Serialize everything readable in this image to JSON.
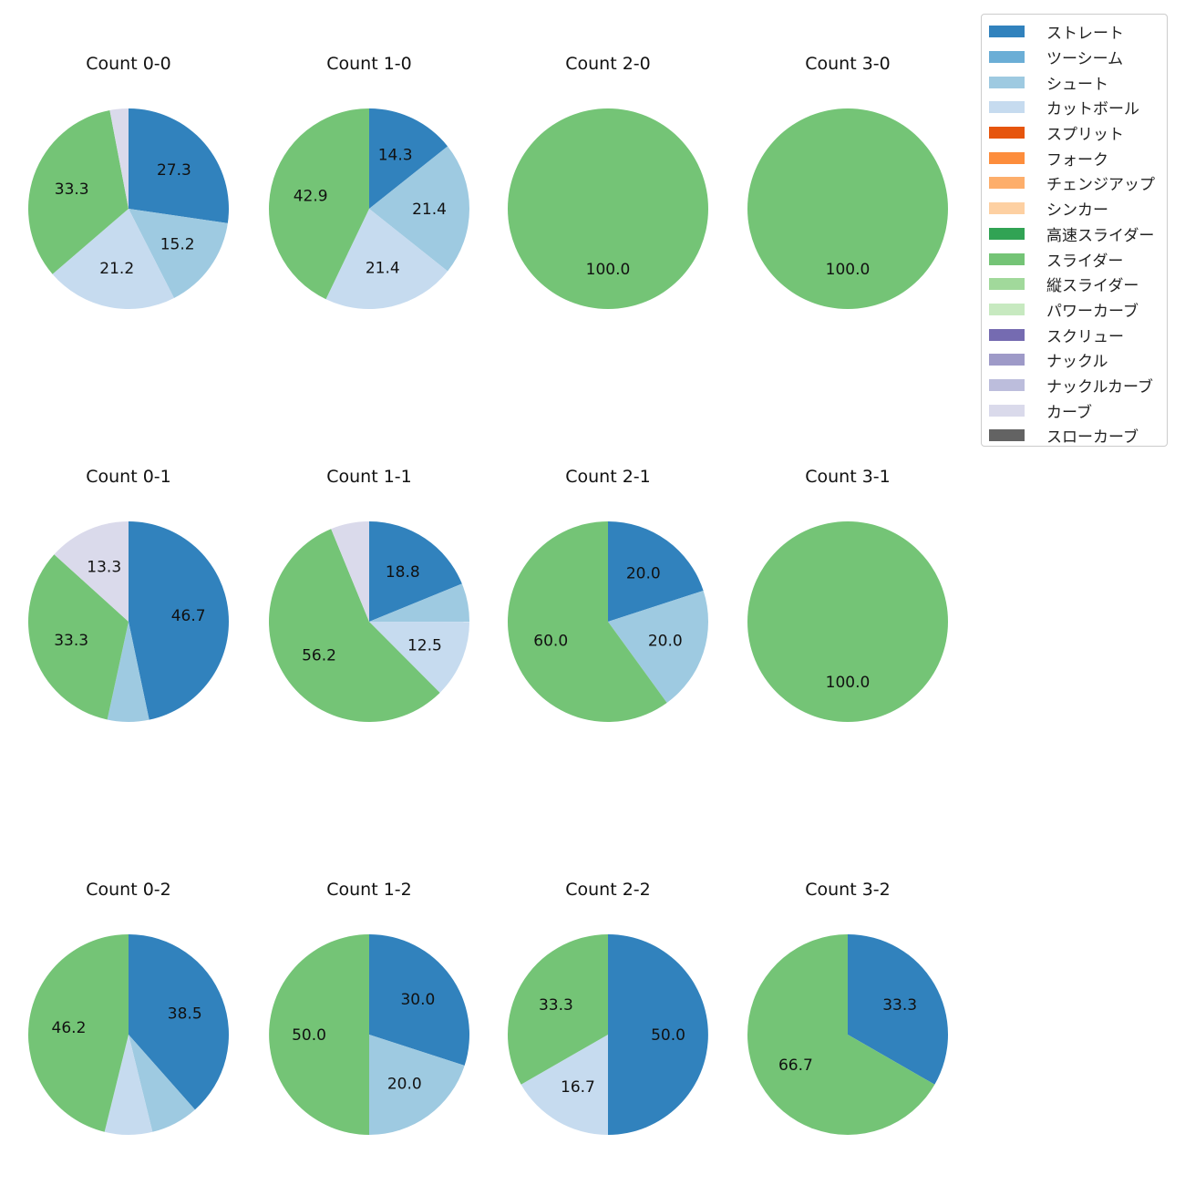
{
  "chart_data": {
    "type": "pie",
    "start_angle": 90,
    "direction": "clockwise",
    "label_format": "%.1f",
    "legend": {
      "placement": "top-right",
      "entries": [
        {
          "name": "ストレート",
          "color": "#3182bd"
        },
        {
          "name": "ツーシーム",
          "color": "#6baed6"
        },
        {
          "name": "シュート",
          "color": "#9ecae1"
        },
        {
          "name": "カットボール",
          "color": "#c6dbef"
        },
        {
          "name": "スプリット",
          "color": "#e6550d"
        },
        {
          "name": "フォーク",
          "color": "#fd8d3c"
        },
        {
          "name": "チェンジアップ",
          "color": "#fdae6b"
        },
        {
          "name": "シンカー",
          "color": "#fdd0a2"
        },
        {
          "name": "高速スライダー",
          "color": "#31a354"
        },
        {
          "name": "スライダー",
          "color": "#74c476"
        },
        {
          "name": "縦スライダー",
          "color": "#a1d99b"
        },
        {
          "name": "パワーカーブ",
          "color": "#c7e9c0"
        },
        {
          "name": "スクリュー",
          "color": "#756bb1"
        },
        {
          "name": "ナックル",
          "color": "#9e9ac8"
        },
        {
          "name": "ナックルカーブ",
          "color": "#bcbddc"
        },
        {
          "name": "カーブ",
          "color": "#dadaeb"
        },
        {
          "name": "スローカーブ",
          "color": "#636363"
        }
      ]
    },
    "pies": [
      {
        "title": "Count 0-0",
        "slices": [
          {
            "name": "ストレート",
            "value": 27.3
          },
          {
            "name": "シュート",
            "value": 15.2
          },
          {
            "name": "カットボール",
            "value": 21.2
          },
          {
            "name": "スライダー",
            "value": 33.3
          },
          {
            "name": "カーブ",
            "value": 3.0
          }
        ]
      },
      {
        "title": "Count 1-0",
        "slices": [
          {
            "name": "ストレート",
            "value": 14.3
          },
          {
            "name": "シュート",
            "value": 21.4
          },
          {
            "name": "カットボール",
            "value": 21.4
          },
          {
            "name": "スライダー",
            "value": 42.9
          }
        ]
      },
      {
        "title": "Count 2-0",
        "slices": [
          {
            "name": "スライダー",
            "value": 100.0
          }
        ]
      },
      {
        "title": "Count 3-0",
        "slices": [
          {
            "name": "スライダー",
            "value": 100.0
          }
        ]
      },
      {
        "title": "Count 0-1",
        "slices": [
          {
            "name": "ストレート",
            "value": 46.7
          },
          {
            "name": "シュート",
            "value": 6.7
          },
          {
            "name": "スライダー",
            "value": 33.3
          },
          {
            "name": "カーブ",
            "value": 13.3
          }
        ]
      },
      {
        "title": "Count 1-1",
        "slices": [
          {
            "name": "ストレート",
            "value": 18.8
          },
          {
            "name": "シュート",
            "value": 6.2
          },
          {
            "name": "カットボール",
            "value": 12.5
          },
          {
            "name": "スライダー",
            "value": 56.2
          },
          {
            "name": "カーブ",
            "value": 6.2
          }
        ]
      },
      {
        "title": "Count 2-1",
        "slices": [
          {
            "name": "ストレート",
            "value": 20.0
          },
          {
            "name": "シュート",
            "value": 20.0
          },
          {
            "name": "スライダー",
            "value": 60.0
          }
        ]
      },
      {
        "title": "Count 3-1",
        "slices": [
          {
            "name": "スライダー",
            "value": 100.0
          }
        ]
      },
      {
        "title": "Count 0-2",
        "slices": [
          {
            "name": "ストレート",
            "value": 38.5
          },
          {
            "name": "シュート",
            "value": 7.7
          },
          {
            "name": "カットボール",
            "value": 7.7
          },
          {
            "name": "スライダー",
            "value": 46.2
          }
        ]
      },
      {
        "title": "Count 1-2",
        "slices": [
          {
            "name": "ストレート",
            "value": 30.0
          },
          {
            "name": "シュート",
            "value": 20.0
          },
          {
            "name": "スライダー",
            "value": 50.0
          }
        ]
      },
      {
        "title": "Count 2-2",
        "slices": [
          {
            "name": "ストレート",
            "value": 50.0
          },
          {
            "name": "カットボール",
            "value": 16.7
          },
          {
            "name": "スライダー",
            "value": 33.3
          }
        ]
      },
      {
        "title": "Count 3-2",
        "slices": [
          {
            "name": "ストレート",
            "value": 33.3
          },
          {
            "name": "スライダー",
            "value": 66.7
          }
        ]
      }
    ]
  }
}
